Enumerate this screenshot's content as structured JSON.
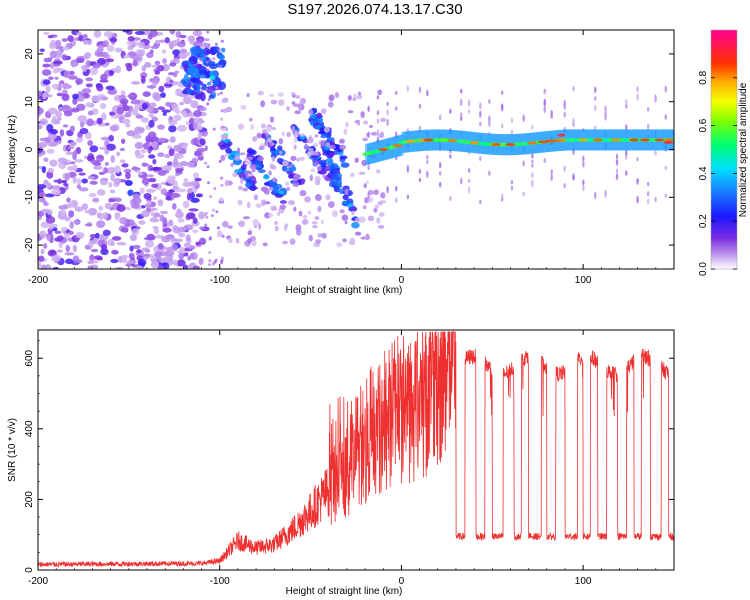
{
  "title": "S197.2026.074.13.17.C30",
  "chart_data": [
    {
      "type": "heatmap",
      "name": "spectrogram",
      "xlabel": "Height of straight line (km)",
      "ylabel": "Frequency (Hz)",
      "xlim": [
        -200,
        150
      ],
      "ylim": [
        -25,
        25
      ],
      "xticks": [
        -200,
        -100,
        0,
        100
      ],
      "yticks": [
        -20,
        -10,
        0,
        10,
        20
      ],
      "colorbar": {
        "label": "Normalized spectral amplitude",
        "range": [
          0,
          1
        ],
        "ticks": [
          0.0,
          0.2,
          0.4,
          0.6,
          0.8
        ],
        "tick_labels": [
          "0.0",
          "0.2",
          "0.4",
          "0.6",
          "0.8"
        ]
      },
      "features": [
        {
          "desc": "broadband noise",
          "x_range": [
            -200,
            -110
          ],
          "f_range": [
            -25,
            25
          ],
          "level": 0.2
        },
        {
          "desc": "patch",
          "x_range": [
            -120,
            -98
          ],
          "f_range": [
            12,
            20
          ],
          "level": 0.35
        },
        {
          "desc": "streaks",
          "x_range": [
            -100,
            -20
          ],
          "f_range": [
            -10,
            5
          ],
          "level": 0.35
        },
        {
          "desc": "tone",
          "x_range": [
            -20,
            150
          ],
          "f_center": [
            1,
            2.5
          ],
          "level": 0.9
        }
      ]
    },
    {
      "type": "line",
      "name": "snr",
      "xlabel": "Height of straight line (km)",
      "ylabel": "SNR (10 * v/v)",
      "xlim": [
        -200,
        150
      ],
      "ylim": [
        0,
        680
      ],
      "xticks": [
        -200,
        -100,
        0,
        100
      ],
      "yticks": [
        0,
        200,
        400,
        600
      ],
      "color": "#ef3030",
      "segments_x": [
        -200,
        -110,
        -100,
        -90,
        -80,
        -70,
        -60,
        -50,
        -40,
        -30,
        -20,
        -10,
        0,
        10,
        20,
        25,
        30
      ],
      "segments_y": [
        15,
        18,
        25,
        80,
        60,
        70,
        110,
        160,
        220,
        250,
        300,
        370,
        420,
        430,
        500,
        560,
        580
      ],
      "high_level": 600,
      "low_level": 95,
      "drop_intervals": [
        [
          28,
          35
        ],
        [
          41,
          46
        ],
        [
          50,
          56
        ],
        [
          62,
          66
        ],
        [
          70,
          77
        ],
        [
          80,
          85
        ],
        [
          90,
          97
        ],
        [
          100,
          104
        ],
        [
          108,
          113
        ],
        [
          119,
          124
        ],
        [
          128,
          132
        ],
        [
          137,
          143
        ],
        [
          147,
          150
        ]
      ]
    }
  ]
}
